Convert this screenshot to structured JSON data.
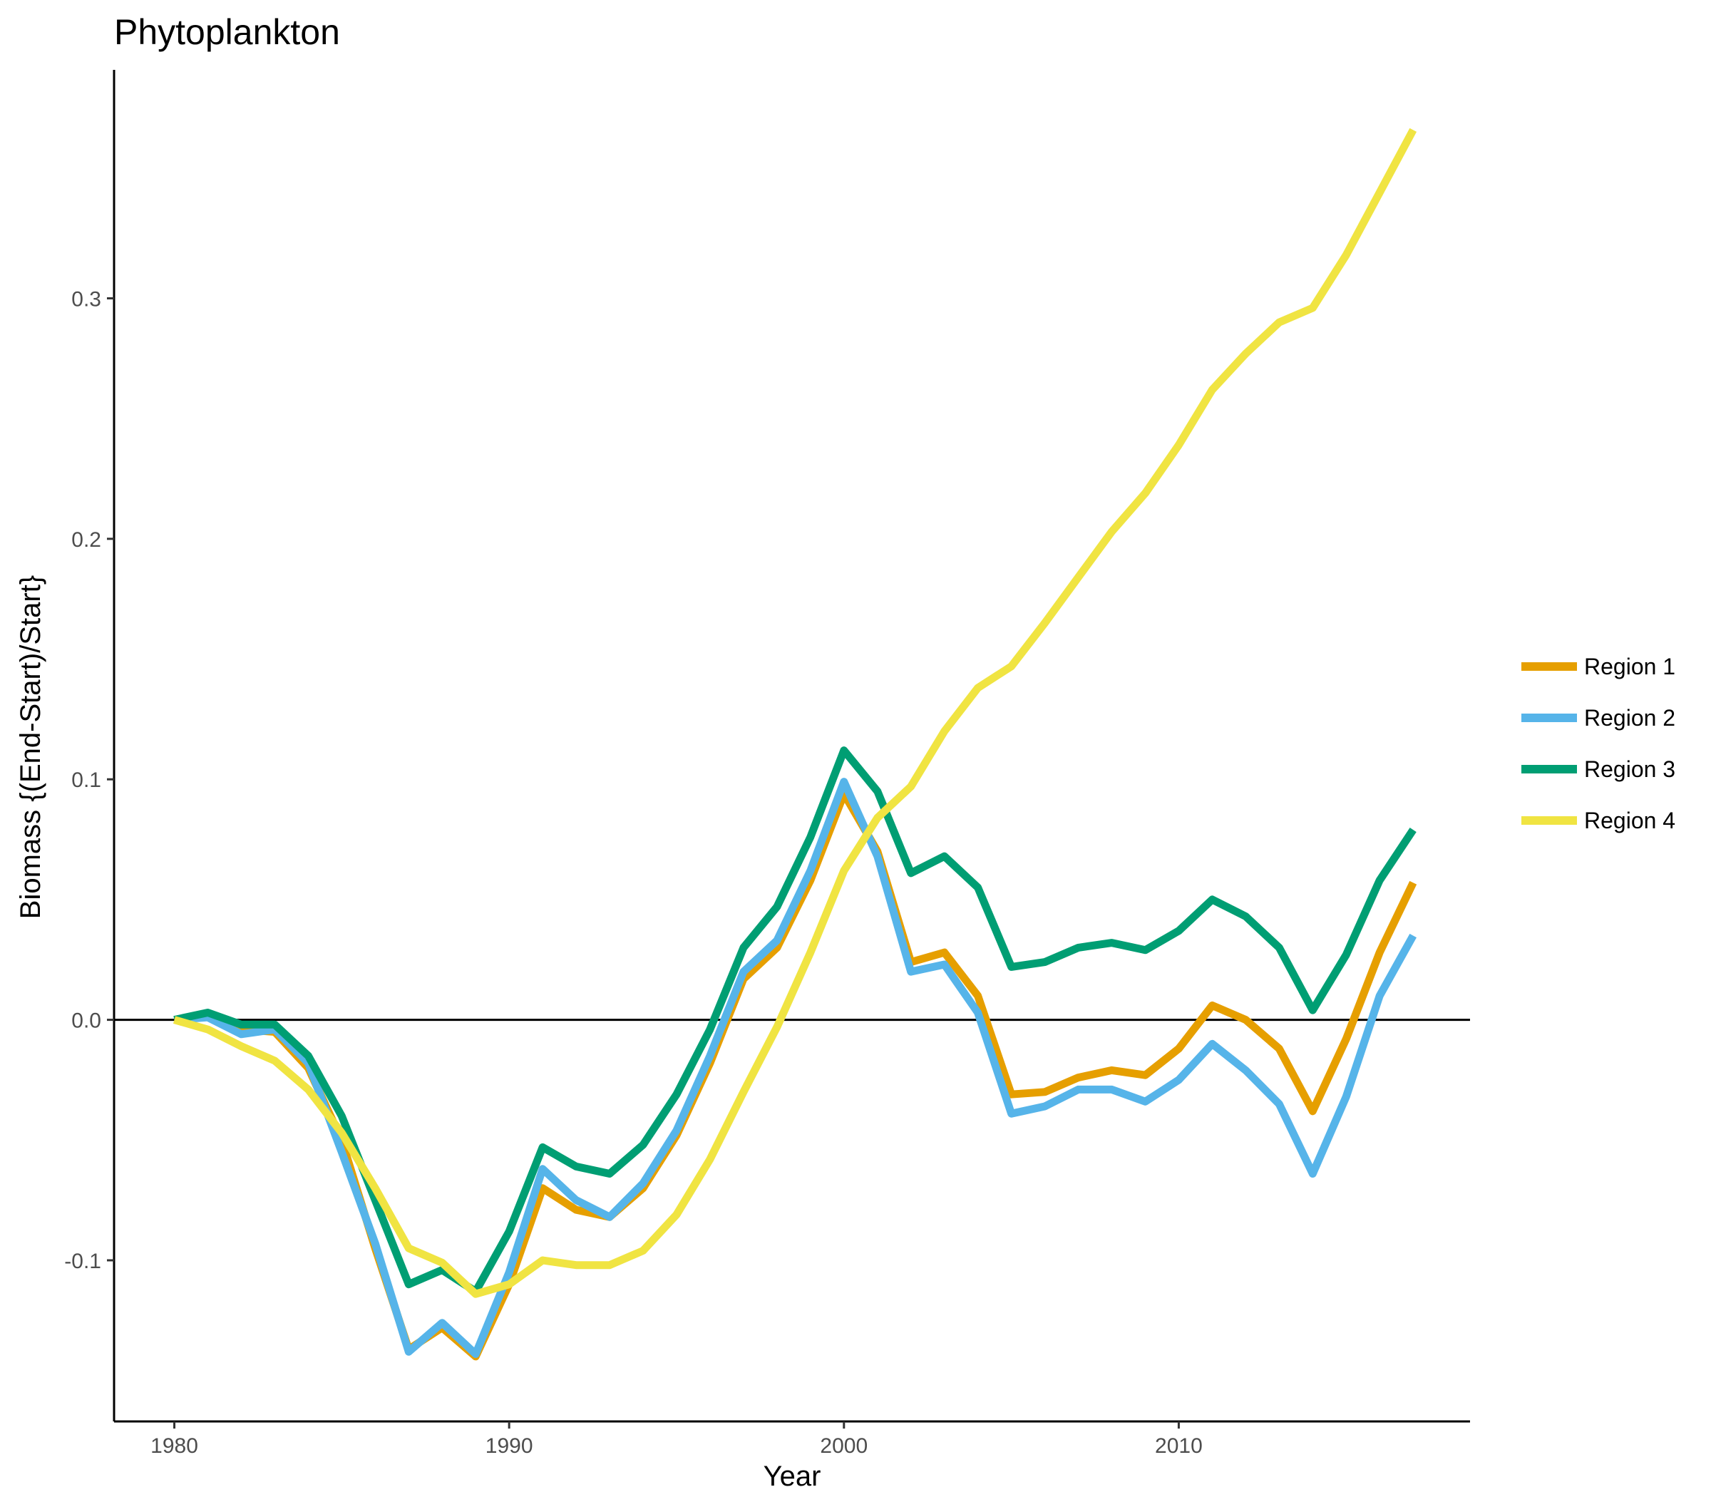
{
  "chart_data": {
    "type": "line",
    "title": "Phytoplankton",
    "xlabel": "Year",
    "ylabel": "Biomass {(End-Start)/Start}",
    "xlim": [
      1978.2,
      2018.7
    ],
    "ylim": [
      -0.167,
      0.395
    ],
    "xticks": [
      1980,
      1990,
      2000,
      2010
    ],
    "xtick_labels": [
      "1980",
      "1990",
      "2000",
      "2010"
    ],
    "yticks": [
      -0.1,
      0.0,
      0.1,
      0.2,
      0.3
    ],
    "ytick_labels": [
      "-0.1",
      "0.0",
      "0.1",
      "0.2",
      "0.3"
    ],
    "reference_line_y": 0,
    "grid": false,
    "legend_position": "right",
    "x": [
      1980,
      1981,
      1982,
      1983,
      1984,
      1985,
      1986,
      1987,
      1988,
      1989,
      1990,
      1991,
      1992,
      1993,
      1994,
      1995,
      1996,
      1997,
      1998,
      1999,
      2000,
      2001,
      2002,
      2003,
      2004,
      2005,
      2006,
      2007,
      2008,
      2009,
      2010,
      2011,
      2012,
      2013,
      2014,
      2015,
      2016,
      2017
    ],
    "series": [
      {
        "name": "Region 1",
        "color": "#E69F00",
        "values": [
          0.0,
          0.002,
          -0.004,
          -0.005,
          -0.02,
          -0.05,
          -0.095,
          -0.137,
          -0.128,
          -0.14,
          -0.11,
          -0.07,
          -0.079,
          -0.082,
          -0.07,
          -0.048,
          -0.018,
          0.017,
          0.03,
          0.058,
          0.094,
          0.07,
          0.024,
          0.028,
          0.01,
          -0.031,
          -0.03,
          -0.024,
          -0.021,
          -0.023,
          -0.012,
          0.006,
          0.0,
          -0.012,
          -0.038,
          -0.008,
          0.028,
          0.057
        ]
      },
      {
        "name": "Region 2",
        "color": "#56B4E9",
        "values": [
          0.0,
          0.001,
          -0.006,
          -0.004,
          -0.018,
          -0.055,
          -0.093,
          -0.138,
          -0.126,
          -0.139,
          -0.105,
          -0.062,
          -0.075,
          -0.082,
          -0.068,
          -0.046,
          -0.015,
          0.02,
          0.033,
          0.062,
          0.099,
          0.068,
          0.02,
          0.023,
          0.003,
          -0.039,
          -0.036,
          -0.029,
          -0.029,
          -0.034,
          -0.025,
          -0.01,
          -0.021,
          -0.035,
          -0.064,
          -0.032,
          0.01,
          0.035
        ]
      },
      {
        "name": "Region 3",
        "color": "#009E73",
        "values": [
          0.0,
          0.003,
          -0.002,
          -0.002,
          -0.015,
          -0.04,
          -0.075,
          -0.11,
          -0.104,
          -0.113,
          -0.088,
          -0.053,
          -0.061,
          -0.064,
          -0.052,
          -0.031,
          -0.004,
          0.03,
          0.047,
          0.076,
          0.112,
          0.095,
          0.061,
          0.068,
          0.055,
          0.022,
          0.024,
          0.03,
          0.032,
          0.029,
          0.037,
          0.05,
          0.043,
          0.03,
          0.004,
          0.027,
          0.058,
          0.079
        ]
      },
      {
        "name": "Region 4",
        "color": "#F0E442",
        "values": [
          0.0,
          -0.004,
          -0.011,
          -0.017,
          -0.029,
          -0.047,
          -0.07,
          -0.095,
          -0.101,
          -0.114,
          -0.11,
          -0.1,
          -0.102,
          -0.102,
          -0.096,
          -0.081,
          -0.058,
          -0.03,
          -0.003,
          0.028,
          0.062,
          0.084,
          0.097,
          0.12,
          0.138,
          0.147,
          0.165,
          0.184,
          0.203,
          0.219,
          0.239,
          0.262,
          0.277,
          0.29,
          0.296,
          0.318,
          0.344,
          0.37
        ]
      }
    ]
  }
}
